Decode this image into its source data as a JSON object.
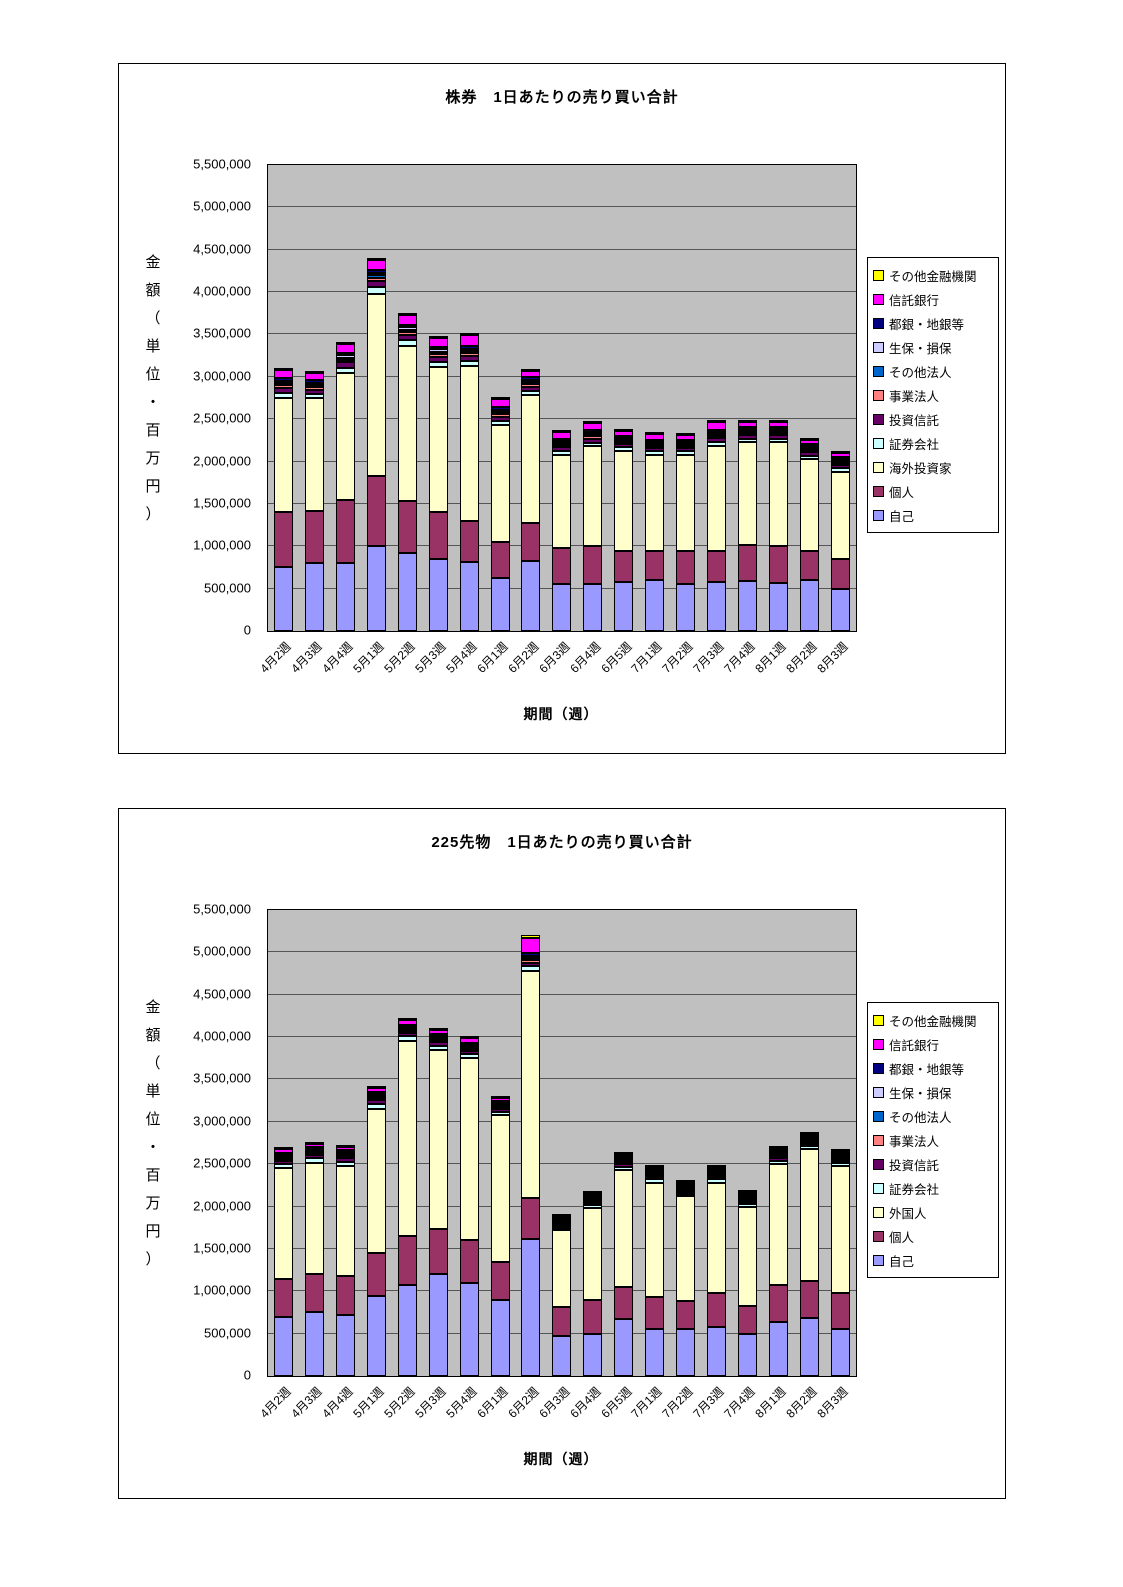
{
  "page": {
    "background": "#FFFFFF"
  },
  "chart_data": [
    {
      "type": "bar",
      "stacked": true,
      "title": "株券　1日あたりの売り買い合計",
      "y_axis_title": "金額（単位・百万円）",
      "x_axis_title": "期間（週）",
      "ylim": [
        0,
        5500000
      ],
      "y_tick_step": 500000,
      "plot_background": "#C0C0C0",
      "grid": true,
      "legend_position": "right",
      "categories": [
        "4月2週",
        "4月3週",
        "4月4週",
        "5月1週",
        "5月2週",
        "5月3週",
        "5月4週",
        "6月1週",
        "6月2週",
        "6月3週",
        "6月4週",
        "6月5週",
        "7月1週",
        "7月2週",
        "7月3週",
        "7月4週",
        "8月1週",
        "8月2週",
        "8月3週"
      ],
      "series": [
        {
          "name": "自己",
          "color": "#9999FF",
          "values": [
            750000,
            800000,
            800000,
            1000000,
            920000,
            850000,
            820000,
            630000,
            830000,
            550000,
            560000,
            580000,
            600000,
            550000,
            580000,
            590000,
            570000,
            600000,
            500000
          ]
        },
        {
          "name": "個人",
          "color": "#993366",
          "values": [
            650000,
            620000,
            750000,
            830000,
            620000,
            550000,
            480000,
            420000,
            450000,
            430000,
            440000,
            370000,
            350000,
            400000,
            370000,
            430000,
            430000,
            350000,
            350000
          ]
        },
        {
          "name": "海外投資家",
          "color": "#FFFFCC",
          "values": [
            1350000,
            1330000,
            1500000,
            2150000,
            1830000,
            1720000,
            1830000,
            1380000,
            1500000,
            1100000,
            1180000,
            1180000,
            1130000,
            1130000,
            1230000,
            1210000,
            1230000,
            1080000,
            1030000
          ]
        },
        {
          "name": "証券会社",
          "color": "#CCFFFF",
          "values": [
            60000,
            50000,
            60000,
            80000,
            70000,
            60000,
            60000,
            50000,
            50000,
            40000,
            40000,
            40000,
            40000,
            40000,
            50000,
            40000,
            40000,
            40000,
            40000
          ]
        },
        {
          "name": "投資信託",
          "color": "#660066",
          "values": [
            60000,
            50000,
            60000,
            70000,
            60000,
            60000,
            60000,
            50000,
            50000,
            50000,
            50000,
            40000,
            40000,
            40000,
            50000,
            40000,
            40000,
            40000,
            40000
          ]
        },
        {
          "name": "事業法人",
          "color": "#FF8080",
          "values": [
            30000,
            30000,
            30000,
            40000,
            30000,
            30000,
            30000,
            30000,
            30000,
            30000,
            30000,
            20000,
            20000,
            20000,
            20000,
            20000,
            20000,
            20000,
            20000
          ]
        },
        {
          "name": "その他法人",
          "color": "#0066CC",
          "values": [
            20000,
            20000,
            20000,
            30000,
            20000,
            20000,
            20000,
            20000,
            20000,
            20000,
            20000,
            20000,
            20000,
            20000,
            20000,
            20000,
            20000,
            20000,
            20000
          ]
        },
        {
          "name": "生保・損保",
          "color": "#CCCCFF",
          "values": [
            30000,
            30000,
            30000,
            30000,
            30000,
            30000,
            30000,
            30000,
            30000,
            20000,
            20000,
            20000,
            20000,
            20000,
            20000,
            20000,
            20000,
            20000,
            20000
          ]
        },
        {
          "name": "都銀・地銀等",
          "color": "#000080",
          "values": [
            30000,
            30000,
            30000,
            30000,
            30000,
            30000,
            30000,
            30000,
            30000,
            20000,
            20000,
            20000,
            20000,
            20000,
            20000,
            20000,
            20000,
            20000,
            20000
          ]
        },
        {
          "name": "信託銀行",
          "color": "#FF00FF",
          "values": [
            100000,
            80000,
            100000,
            120000,
            120000,
            100000,
            130000,
            100000,
            80000,
            80000,
            90000,
            60000,
            70000,
            60000,
            90000,
            60000,
            60000,
            50000,
            50000
          ]
        },
        {
          "name": "その他金融機関",
          "color": "#FFFF00",
          "values": [
            20000,
            10000,
            20000,
            20000,
            20000,
            20000,
            20000,
            20000,
            10000,
            10000,
            10000,
            10000,
            10000,
            10000,
            10000,
            10000,
            10000,
            10000,
            10000
          ]
        }
      ]
    },
    {
      "type": "bar",
      "stacked": true,
      "title": "225先物　1日あたりの売り買い合計",
      "y_axis_title": "金額（単位・百万円）",
      "x_axis_title": "期間（週）",
      "ylim": [
        0,
        5500000
      ],
      "y_tick_step": 500000,
      "plot_background": "#C0C0C0",
      "grid": true,
      "legend_position": "right",
      "categories": [
        "4月2週",
        "4月3週",
        "4月4週",
        "5月1週",
        "5月2週",
        "5月3週",
        "5月4週",
        "6月1週",
        "6月2週",
        "6月3週",
        "6月4週",
        "6月5週",
        "7月1週",
        "7月2週",
        "7月3週",
        "7月4週",
        "8月1週",
        "8月2週",
        "8月3週"
      ],
      "series": [
        {
          "name": "自己",
          "color": "#9999FF",
          "values": [
            700000,
            750000,
            720000,
            950000,
            1070000,
            1200000,
            1100000,
            900000,
            1620000,
            470000,
            500000,
            670000,
            560000,
            560000,
            580000,
            500000,
            640000,
            680000,
            560000
          ]
        },
        {
          "name": "個人",
          "color": "#993366",
          "values": [
            450000,
            450000,
            460000,
            500000,
            580000,
            530000,
            500000,
            450000,
            480000,
            350000,
            400000,
            380000,
            370000,
            320000,
            400000,
            330000,
            440000,
            440000,
            420000
          ]
        },
        {
          "name": "外国人",
          "color": "#FFFFCC",
          "values": [
            1300000,
            1320000,
            1300000,
            1700000,
            2300000,
            2120000,
            2150000,
            1730000,
            2680000,
            900000,
            1080000,
            1380000,
            1350000,
            1240000,
            1300000,
            1170000,
            1420000,
            1560000,
            1500000
          ]
        },
        {
          "name": "証券会社",
          "color": "#CCFFFF",
          "values": [
            50000,
            50000,
            50000,
            60000,
            60000,
            50000,
            50000,
            40000,
            60000,
            30000,
            40000,
            40000,
            40000,
            30000,
            40000,
            30000,
            40000,
            40000,
            40000
          ]
        },
        {
          "name": "投資信託",
          "color": "#660066",
          "values": [
            40000,
            40000,
            40000,
            50000,
            40000,
            40000,
            40000,
            30000,
            40000,
            20000,
            20000,
            30000,
            20000,
            20000,
            20000,
            20000,
            30000,
            20000,
            20000
          ]
        },
        {
          "name": "事業法人",
          "color": "#FF8080",
          "values": [
            20000,
            20000,
            20000,
            20000,
            20000,
            20000,
            20000,
            20000,
            30000,
            10000,
            10000,
            10000,
            10000,
            10000,
            10000,
            10000,
            10000,
            10000,
            10000
          ]
        },
        {
          "name": "その他法人",
          "color": "#0066CC",
          "values": [
            10000,
            10000,
            10000,
            10000,
            10000,
            10000,
            10000,
            10000,
            20000,
            10000,
            10000,
            10000,
            10000,
            10000,
            10000,
            10000,
            10000,
            10000,
            10000
          ]
        },
        {
          "name": "生保・損保",
          "color": "#CCCCFF",
          "values": [
            20000,
            20000,
            20000,
            20000,
            20000,
            20000,
            20000,
            20000,
            30000,
            10000,
            10000,
            10000,
            10000,
            10000,
            10000,
            10000,
            10000,
            10000,
            10000
          ]
        },
        {
          "name": "都銀・地銀等",
          "color": "#000080",
          "values": [
            20000,
            20000,
            20000,
            20000,
            20000,
            20000,
            20000,
            20000,
            30000,
            10000,
            20000,
            20000,
            20000,
            20000,
            20000,
            20000,
            20000,
            20000,
            20000
          ]
        },
        {
          "name": "信託銀行",
          "color": "#FF00FF",
          "values": [
            40000,
            40000,
            40000,
            50000,
            60000,
            50000,
            50000,
            40000,
            180000,
            10000,
            20000,
            20000,
            20000,
            20000,
            20000,
            20000,
            30000,
            20000,
            20000
          ]
        },
        {
          "name": "その他金融機関",
          "color": "#FFFF00",
          "values": [
            10000,
            10000,
            10000,
            10000,
            10000,
            10000,
            10000,
            10000,
            30000,
            10000,
            10000,
            10000,
            10000,
            10000,
            10000,
            10000,
            10000,
            10000,
            10000
          ]
        }
      ]
    }
  ]
}
